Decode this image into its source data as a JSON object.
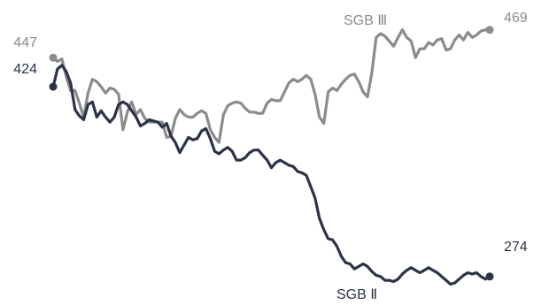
{
  "chart_data": {
    "type": "line",
    "title": "",
    "xlabel": "",
    "ylabel": "",
    "ylim": [
      255,
      480
    ],
    "grid": false,
    "legend": "none",
    "x": [
      1,
      2,
      3,
      4,
      5,
      6,
      7,
      8,
      9,
      10,
      11,
      12,
      13,
      14,
      15,
      16,
      17,
      18,
      19,
      20,
      21,
      22,
      23,
      24,
      25,
      26,
      27,
      28,
      29,
      30,
      31,
      32,
      33,
      34,
      35,
      36,
      37,
      38,
      39,
      40,
      41,
      42,
      43,
      44,
      45,
      46,
      47,
      48,
      49,
      50,
      51,
      52,
      53,
      54,
      55,
      56,
      57,
      58,
      59,
      60,
      61,
      62,
      63,
      64,
      65,
      66,
      67,
      68,
      69,
      70,
      71,
      72,
      73,
      74,
      75,
      76,
      77,
      78,
      79,
      80,
      81,
      82,
      83,
      84,
      85,
      86,
      87,
      88,
      89,
      90,
      91,
      92,
      93,
      94,
      95,
      96,
      97,
      98,
      99,
      100,
      101
    ],
    "series": [
      {
        "name": "SGB Ⅲ",
        "color": "#8c8c8c",
        "values": [
          447,
          444,
          446,
          432,
          421,
          421,
          411,
          400,
          419,
          430,
          428,
          424,
          419,
          423,
          422,
          418,
          390,
          404,
          412,
          402,
          406,
          399,
          396,
          396,
          396,
          396,
          384,
          385,
          399,
          406,
          402,
          400,
          400,
          403,
          405,
          403,
          390,
          384,
          380,
          402,
          409,
          411,
          412,
          411,
          407,
          404,
          404,
          403,
          403,
          411,
          414,
          413,
          413,
          420,
          427,
          430,
          428,
          430,
          433,
          430,
          418,
          400,
          395,
          420,
          423,
          421,
          426,
          430,
          433,
          434,
          428,
          420,
          416,
          435,
          463,
          466,
          464,
          460,
          456,
          463,
          469,
          463,
          460,
          447,
          454,
          454,
          459,
          457,
          461,
          462,
          453,
          454,
          461,
          465,
          461,
          467,
          463,
          465,
          468,
          469,
          469
        ],
        "end_label": "469",
        "start_label": "447"
      },
      {
        "name": "SGB Ⅱ",
        "color": "#2c3347",
        "values": [
          424,
          438,
          441,
          436,
          427,
          406,
          401,
          398,
          410,
          412,
          400,
          405,
          400,
          396,
          400,
          410,
          412,
          410,
          405,
          400,
          393,
          395,
          398,
          397,
          396,
          392,
          395,
          385,
          380,
          372,
          378,
          384,
          382,
          383,
          389,
          391,
          383,
          373,
          371,
          374,
          376,
          373,
          366,
          366,
          368,
          372,
          374,
          374,
          370,
          366,
          360,
          364,
          366,
          364,
          362,
          361,
          357,
          356,
          354,
          345,
          336,
          320,
          311,
          304,
          303,
          298,
          290,
          285,
          284,
          280,
          282,
          284,
          282,
          278,
          275,
          274,
          271,
          271,
          270,
          272,
          276,
          279,
          281,
          279,
          277,
          279,
          281,
          279,
          277,
          274,
          271,
          268,
          269,
          272,
          275,
          277,
          276,
          277,
          274,
          272,
          274
        ],
        "end_label": "274",
        "start_label": "424"
      }
    ]
  },
  "labels": {
    "sgb3_start": "447",
    "sgb2_start": "424",
    "sgb3_end": "469",
    "sgb2_end": "274",
    "sgb3_name": "SGB Ⅲ",
    "sgb2_name": "SGB Ⅱ"
  }
}
